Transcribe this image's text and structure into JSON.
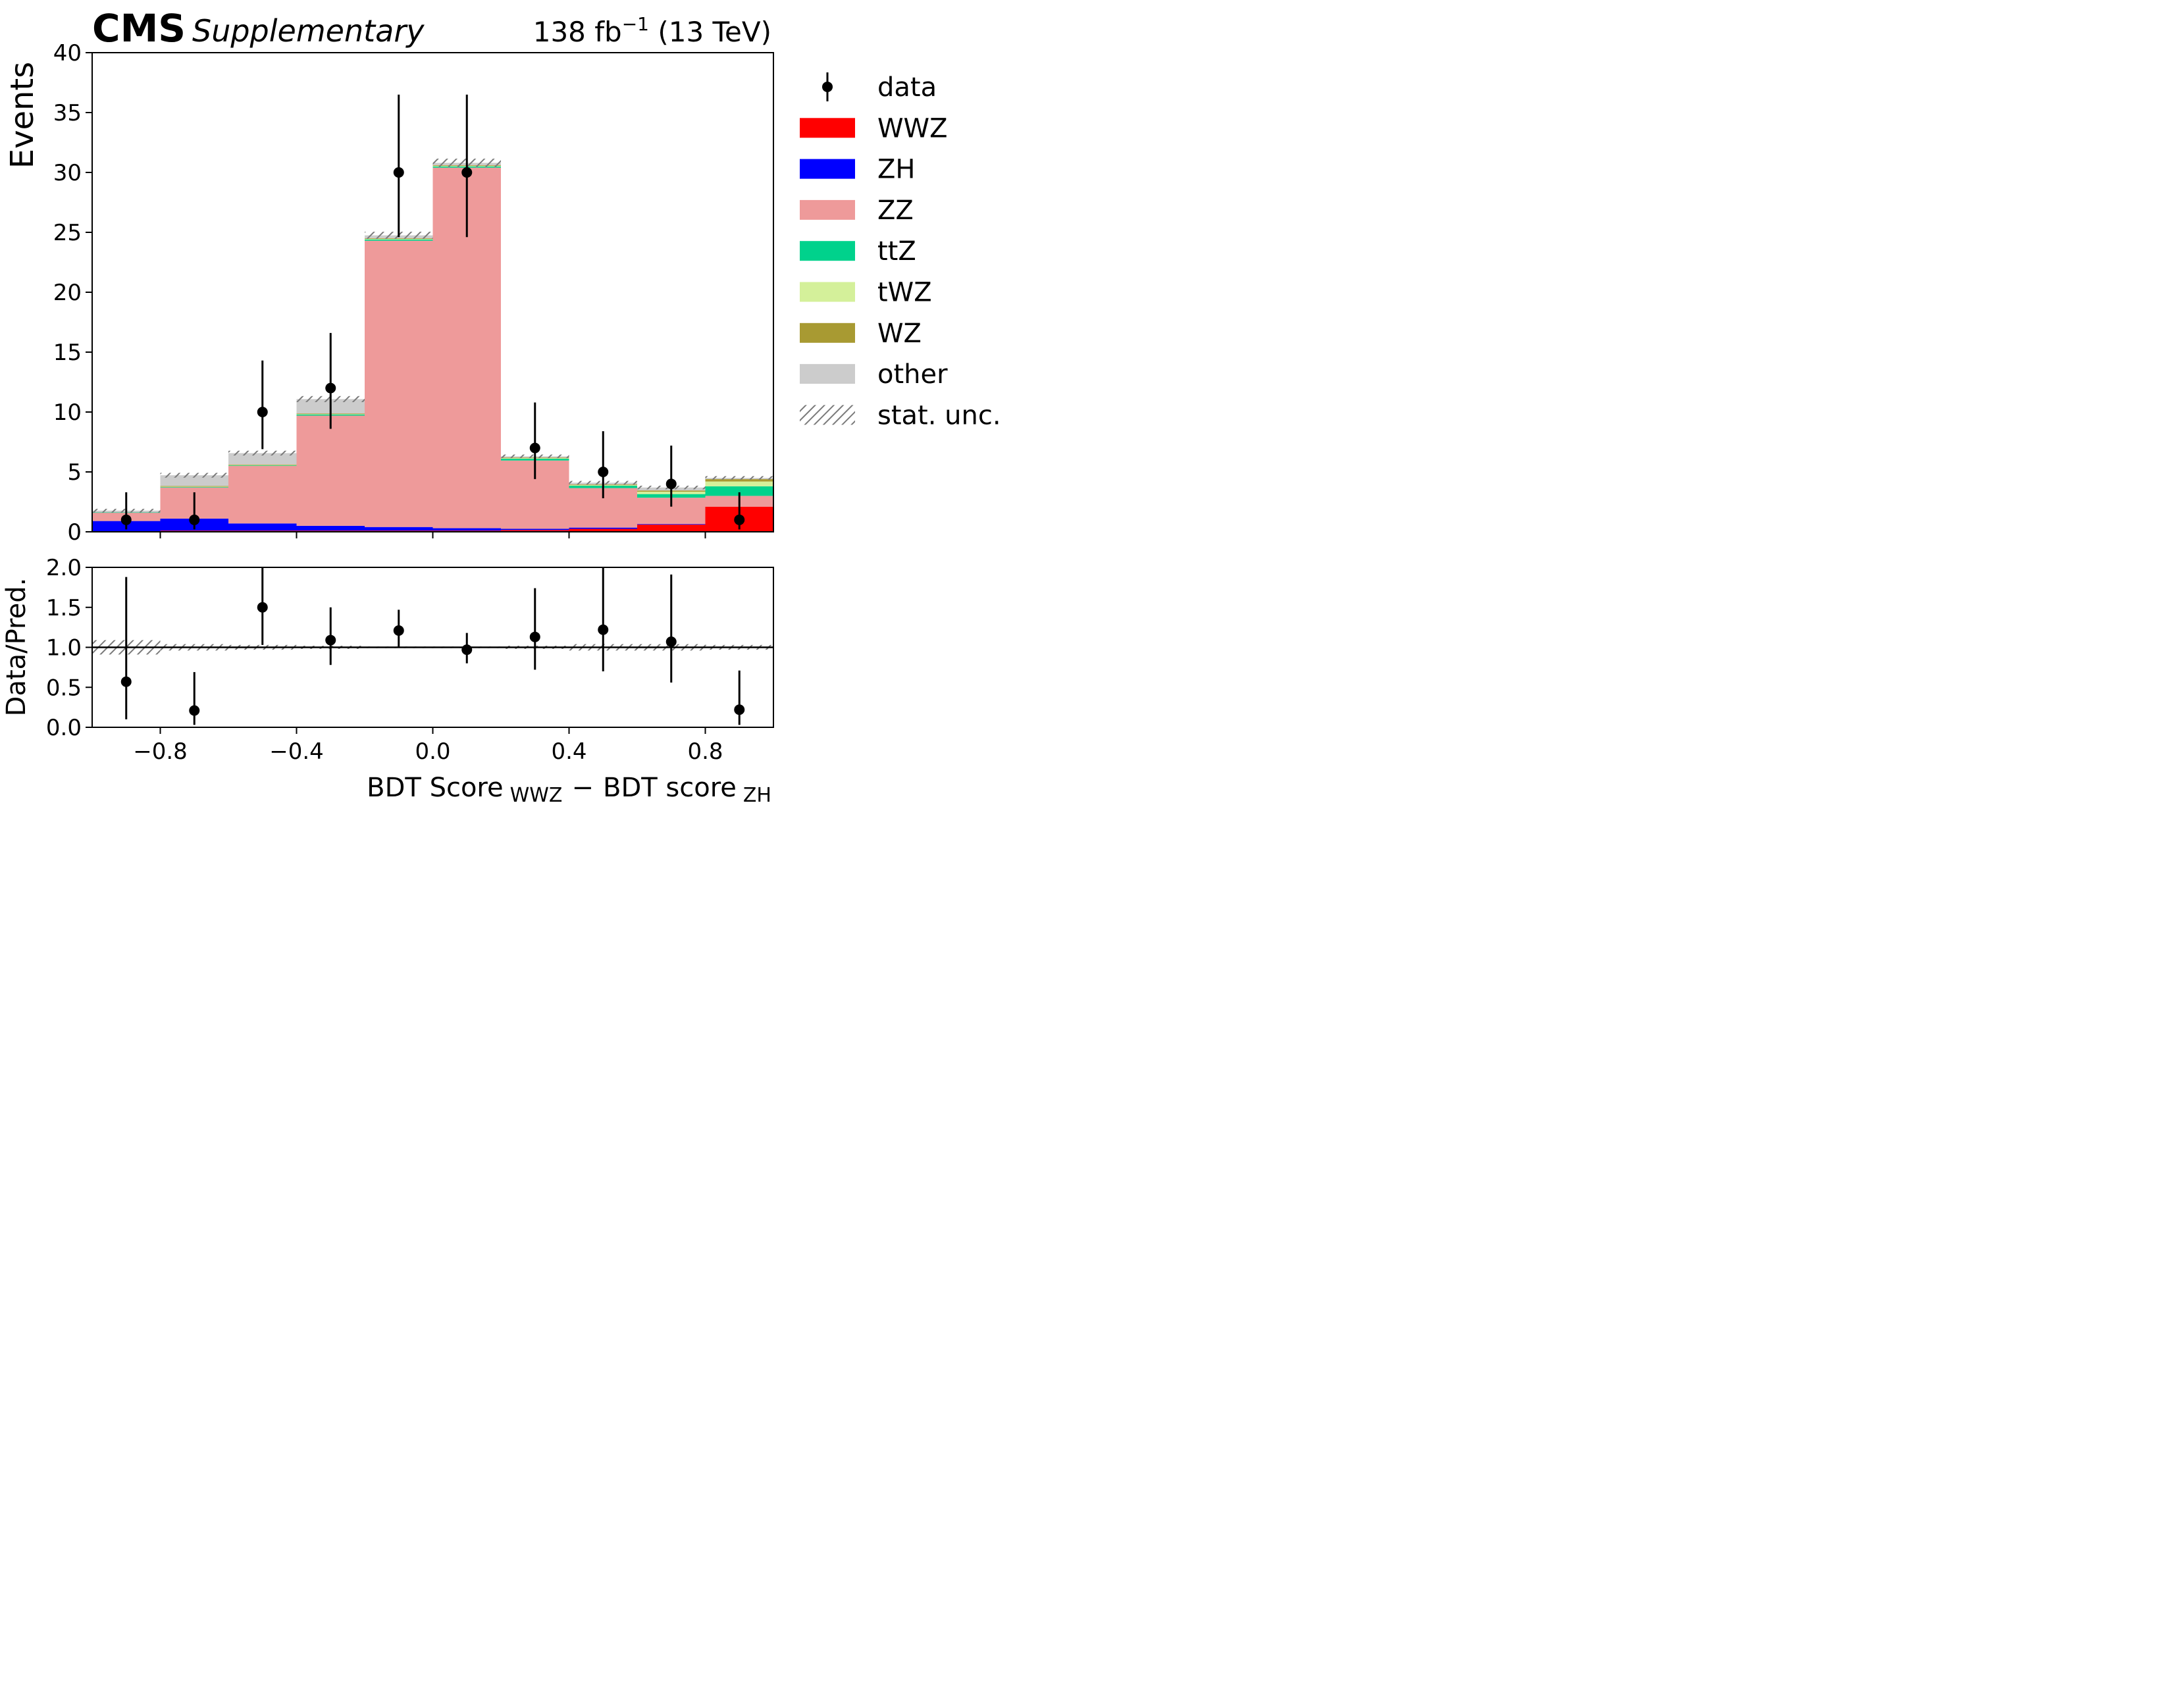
{
  "header": {
    "experiment": "CMS",
    "label": "Supplementary",
    "lumi_prefix": "138 fb",
    "lumi_exp": "−1",
    "lumi_suffix": " (13 TeV)"
  },
  "colors": {
    "WWZ": "#ff0000",
    "ZH": "#0000ff",
    "ZZ": "#ee9a9a",
    "ttZ": "#00d28c",
    "tWZ": "#d4f09a",
    "WZ": "#a89a32",
    "other": "#cccccc",
    "unc": "#7a7a7a",
    "data": "#000000"
  },
  "chart_data": [
    {
      "type": "bar",
      "stacked": true,
      "panel": "main",
      "ylabel": "Events",
      "ylim": [
        0,
        40
      ],
      "xlim": [
        -1.0,
        1.0
      ],
      "yticks": [
        0,
        5,
        10,
        15,
        20,
        25,
        30,
        35,
        40
      ],
      "ytick_labels": [
        "0",
        "5",
        "10",
        "15",
        "20",
        "25",
        "30",
        "35",
        "40"
      ],
      "bin_edges": [
        -1.0,
        -0.8,
        -0.6,
        -0.4,
        -0.2,
        0.0,
        0.2,
        0.4,
        0.6,
        0.8,
        1.0
      ],
      "series": [
        {
          "name": "WWZ",
          "values": [
            0.05,
            0.1,
            0.1,
            0.1,
            0.1,
            0.1,
            0.15,
            0.25,
            0.6,
            2.1
          ]
        },
        {
          "name": "ZH",
          "values": [
            0.85,
            1.0,
            0.6,
            0.4,
            0.3,
            0.2,
            0.1,
            0.1,
            0.05,
            0.0
          ]
        },
        {
          "name": "ZZ",
          "values": [
            0.7,
            2.6,
            4.8,
            9.2,
            23.9,
            30.1,
            5.7,
            3.3,
            2.2,
            0.9
          ]
        },
        {
          "name": "ttZ",
          "values": [
            0.02,
            0.05,
            0.05,
            0.1,
            0.1,
            0.1,
            0.15,
            0.2,
            0.3,
            0.8
          ]
        },
        {
          "name": "tWZ",
          "values": [
            0.0,
            0.02,
            0.02,
            0.03,
            0.05,
            0.05,
            0.05,
            0.05,
            0.2,
            0.4
          ]
        },
        {
          "name": "WZ",
          "values": [
            0.0,
            0.05,
            0.05,
            0.05,
            0.05,
            0.05,
            0.05,
            0.05,
            0.1,
            0.2
          ]
        },
        {
          "name": "other",
          "values": [
            0.15,
            0.9,
            0.95,
            1.2,
            0.25,
            0.2,
            0.1,
            0.15,
            0.25,
            0.1
          ]
        }
      ],
      "stat_unc": [
        0.15,
        0.2,
        0.2,
        0.25,
        0.3,
        0.35,
        0.15,
        0.15,
        0.15,
        0.15
      ],
      "data": {
        "name": "data",
        "x": [
          -0.9,
          -0.7,
          -0.5,
          -0.3,
          -0.1,
          0.1,
          0.3,
          0.5,
          0.7,
          0.9
        ],
        "y": [
          1,
          1,
          10,
          12,
          30,
          30,
          7,
          5,
          4,
          1
        ],
        "err_low": [
          0.8,
          0.8,
          3.1,
          3.4,
          5.4,
          5.4,
          2.6,
          2.2,
          1.9,
          0.8
        ],
        "err_high": [
          2.3,
          2.3,
          4.3,
          4.6,
          6.5,
          6.5,
          3.8,
          3.4,
          3.2,
          2.3
        ]
      },
      "legend": {
        "placement": "outside-right",
        "entries": [
          "data",
          "WWZ",
          "ZH",
          "ZZ",
          "ttZ",
          "tWZ",
          "WZ",
          "other",
          "stat. unc."
        ]
      }
    },
    {
      "type": "scatter",
      "panel": "ratio",
      "ylabel": "Data/Pred.",
      "xlabel": "BDT Score",
      "xlabel_sub1": "WWZ",
      "xlabel_minus": "−",
      "xlabel2": "BDT score",
      "xlabel_sub2": "ZH",
      "ylim": [
        0.0,
        2.0
      ],
      "xlim": [
        -1.0,
        1.0
      ],
      "yticks": [
        0.0,
        0.5,
        1.0,
        1.5,
        2.0
      ],
      "ytick_labels": [
        "0.0",
        "0.5",
        "1.0",
        "1.5",
        "2.0"
      ],
      "xticks": [
        -0.8,
        -0.4,
        0.0,
        0.4,
        0.8
      ],
      "xtick_labels": [
        "−0.8",
        "−0.4",
        "0.0",
        "0.4",
        "0.8"
      ],
      "reference_line": 1.0,
      "x": [
        -0.9,
        -0.7,
        -0.5,
        -0.3,
        -0.1,
        0.1,
        0.3,
        0.5,
        0.7,
        0.9
      ],
      "y": [
        0.57,
        0.21,
        1.5,
        1.09,
        1.21,
        0.97,
        1.13,
        1.22,
        1.07,
        0.22
      ],
      "err_low": [
        0.47,
        0.18,
        0.47,
        0.31,
        0.21,
        0.17,
        0.41,
        0.52,
        0.51,
        0.19
      ],
      "err_high": [
        1.31,
        0.48,
        0.65,
        0.41,
        0.26,
        0.21,
        0.61,
        0.82,
        0.84,
        0.49
      ],
      "stat_band": [
        0.09,
        0.04,
        0.03,
        0.02,
        0.01,
        0.01,
        0.02,
        0.04,
        0.04,
        0.03
      ]
    }
  ]
}
